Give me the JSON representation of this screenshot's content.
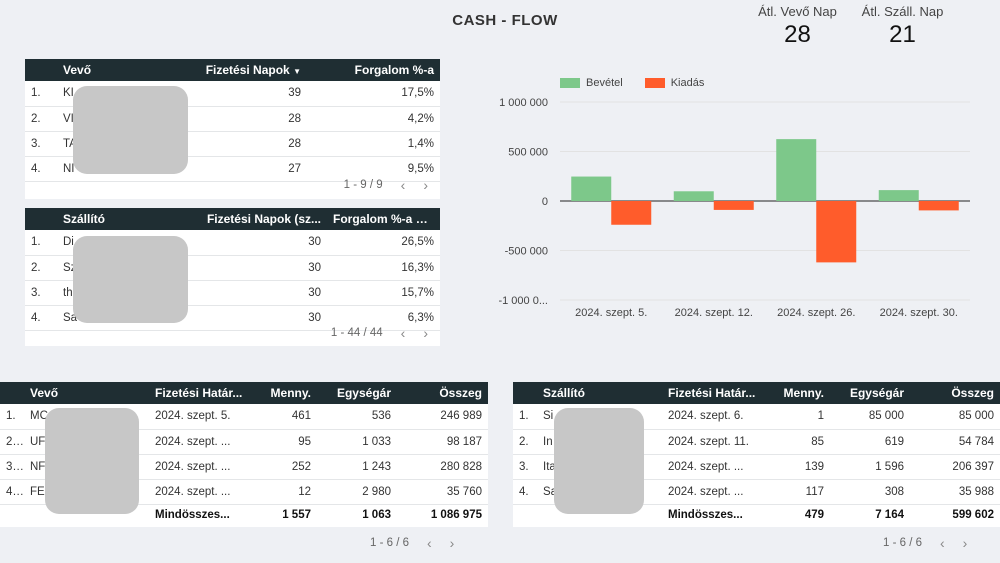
{
  "title": "CASH - FLOW",
  "kpis": {
    "customer_label": "Átl. Vevő Nap",
    "customer_value": "28",
    "supplier_label": "Átl. Száll. Nap",
    "supplier_value": "21"
  },
  "customer_summary": {
    "headers": [
      "Vevő",
      "Fizetési Napok",
      "Forgalom %-a"
    ],
    "rows": [
      {
        "idx": "1.",
        "name": "KI",
        "days": "39",
        "pct": "17,5%"
      },
      {
        "idx": "2.",
        "name": "VI",
        "days": "28",
        "pct": "4,2%"
      },
      {
        "idx": "3.",
        "name": "TA",
        "days": "28",
        "pct": "1,4%"
      },
      {
        "idx": "4.",
        "name": "NI",
        "days": "27",
        "pct": "9,5%"
      }
    ],
    "pager": "1 - 9 / 9"
  },
  "supplier_summary": {
    "headers": [
      "Szállító",
      "Fizetési Napok (sz...",
      "Forgalom %-a"
    ],
    "rows": [
      {
        "idx": "1.",
        "name": "Di",
        "days": "30",
        "pct": "26,5%"
      },
      {
        "idx": "2.",
        "name": "Sz",
        "days": "30",
        "pct": "16,3%"
      },
      {
        "idx": "3.",
        "name": "th",
        "days": "30",
        "pct": "15,7%"
      },
      {
        "idx": "4.",
        "name": "Sa",
        "days": "30",
        "pct": "6,3%"
      }
    ],
    "pager": "1 - 44 / 44"
  },
  "chart_data": {
    "type": "bar",
    "categories": [
      "2024. szept. 5.",
      "2024. szept. 12.",
      "2024. szept. 26.",
      "2024. szept. 30."
    ],
    "series": [
      {
        "name": "Bevétel",
        "color": "#7dc88a",
        "values": [
          246989,
          98187,
          625000,
          110000
        ]
      },
      {
        "name": "Kiadás",
        "color": "#ff5c2b",
        "values": [
          -240000,
          -90000,
          -620000,
          -95000
        ]
      }
    ],
    "ylim": [
      -1000000,
      1000000
    ],
    "yticks": [
      1000000,
      500000,
      0,
      -500000,
      -1000000
    ],
    "ytick_labels": [
      "1 000 000",
      "500 000",
      "0",
      "-500 000",
      "-1 000 0..."
    ],
    "legend": "top-left",
    "grid": true
  },
  "customer_detail": {
    "headers": [
      "Vevő",
      "Fizetési Határ...",
      "Menny.",
      "Egységár",
      "Összeg"
    ],
    "rows": [
      {
        "idx": "1.",
        "name": "MC",
        "date": "2024. szept. 5.",
        "qty": "461",
        "price": "536",
        "sum": "246 989"
      },
      {
        "idx": "2...",
        "name": "UF",
        "date": "2024. szept. ...",
        "qty": "95",
        "price": "1 033",
        "sum": "98 187"
      },
      {
        "idx": "3...",
        "name": "NF",
        "date": "2024. szept. ...",
        "qty": "252",
        "price": "1 243",
        "sum": "280 828"
      },
      {
        "idx": "4...",
        "name": "FE",
        "date": "2024. szept. ...",
        "qty": "12",
        "price": "2 980",
        "sum": "35 760"
      }
    ],
    "total": {
      "label": "Mindösszes...",
      "qty": "1 557",
      "price": "1 063",
      "sum": "1 086 975"
    },
    "pager": "1 - 6 / 6"
  },
  "supplier_detail": {
    "headers": [
      "Szállító",
      "Fizetési Határ...",
      "Menny.",
      "Egységár",
      "Összeg"
    ],
    "rows": [
      {
        "idx": "1.",
        "name": "Si",
        "date": "2024. szept. 6.",
        "qty": "1",
        "price": "85 000",
        "sum": "85 000"
      },
      {
        "idx": "2.",
        "name": "In",
        "date": "2024. szept. 11.",
        "qty": "85",
        "price": "619",
        "sum": "54 784"
      },
      {
        "idx": "3.",
        "name": "Ita",
        "date": "2024. szept. ...",
        "qty": "139",
        "price": "1 596",
        "sum": "206 397"
      },
      {
        "idx": "4.",
        "name": "Sa",
        "date": "2024. szept. ...",
        "qty": "117",
        "price": "308",
        "sum": "35 988"
      }
    ],
    "total": {
      "label": "Mindösszes...",
      "qty": "479",
      "price": "7 164",
      "sum": "599 602"
    },
    "pager": "1 - 6 / 6"
  },
  "icons": {
    "prev": "chevron-left-icon",
    "next": "chevron-right-icon",
    "sort": "sort-down-icon",
    "info": "info-icon"
  }
}
